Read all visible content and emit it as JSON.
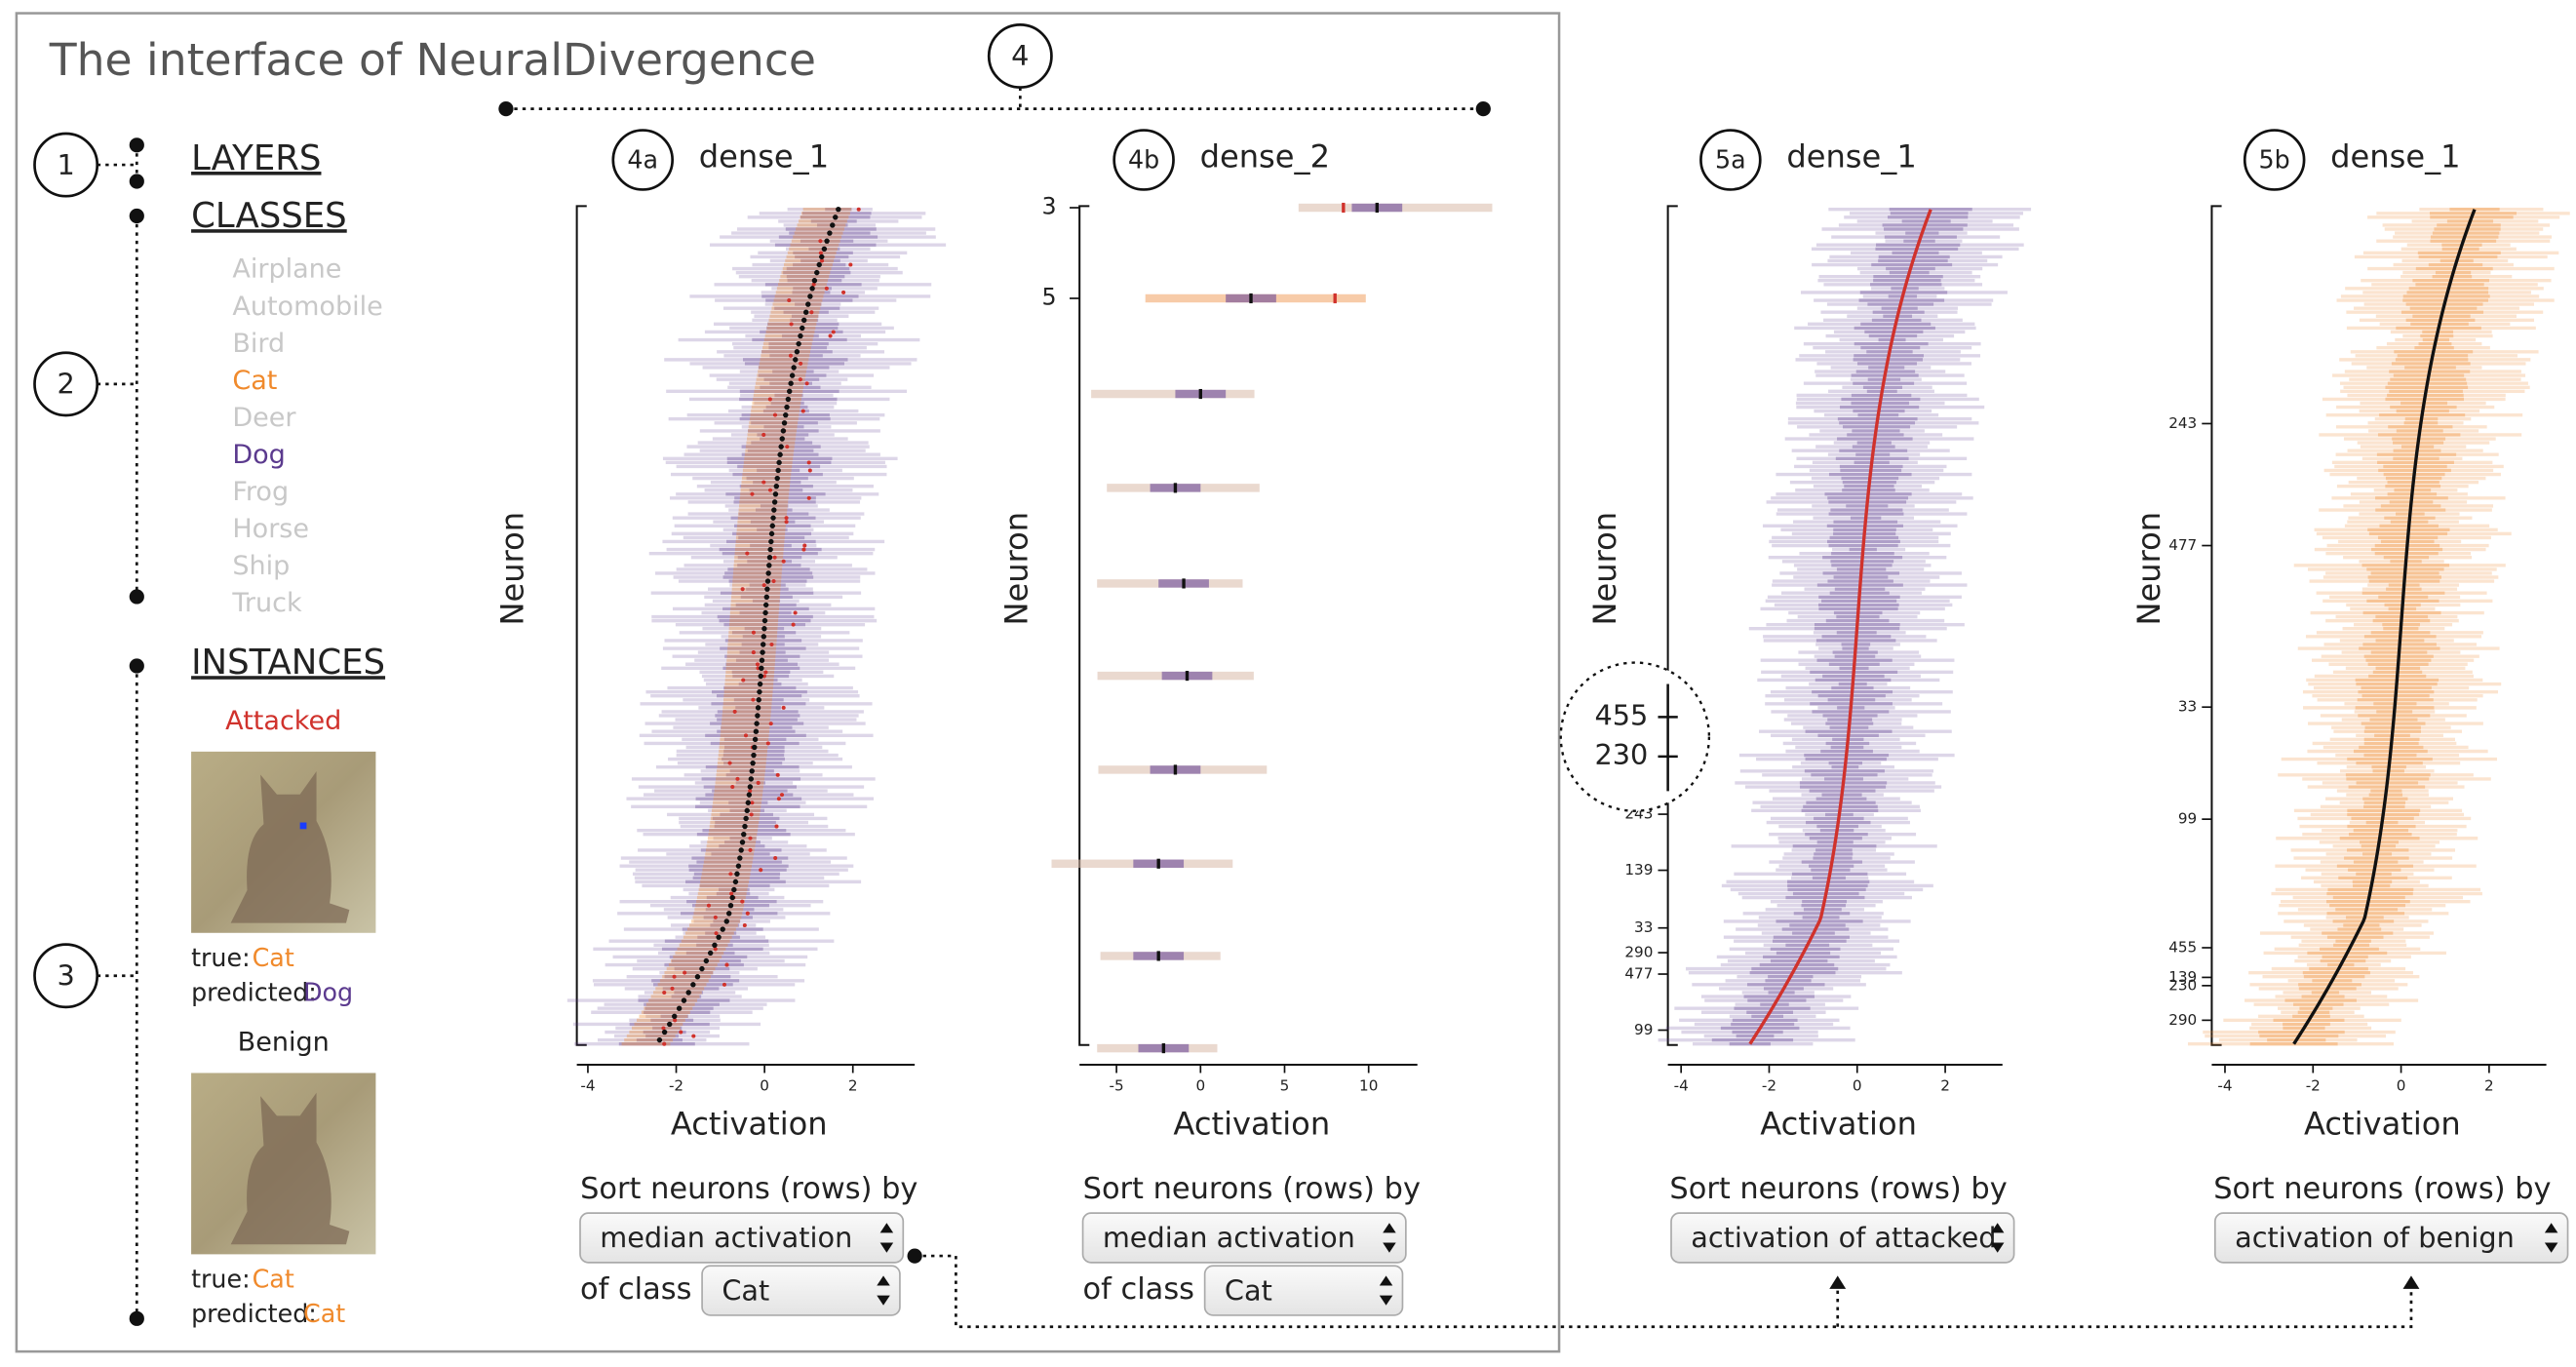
{
  "title": "The interface of NeuralDivergence",
  "callouts": [
    "1",
    "2",
    "3",
    "4"
  ],
  "sidebar": {
    "layers": "LAYERS",
    "classes_heading": "CLASSES",
    "classes": [
      "Airplane",
      "Automobile",
      "Bird",
      "Cat",
      "Deer",
      "Dog",
      "Frog",
      "Horse",
      "Ship",
      "Truck"
    ],
    "instances_heading": "INSTANCES",
    "instances": [
      {
        "caption": "Attacked",
        "true_label": "true:",
        "true_class": "Cat",
        "predicted_label": "predicted:",
        "predicted_class": "Dog"
      },
      {
        "caption": "Benign",
        "true_label": "true:",
        "true_class": "Cat",
        "predicted_label": "predicted:",
        "predicted_class": "Cat"
      }
    ]
  },
  "panels": [
    {
      "callout": "4a",
      "layer": "dense_1",
      "y_label": "Neuron",
      "x_label": "Activation",
      "xlim": [
        -4.25,
        3.4
      ],
      "xticks": [
        -4,
        -2,
        0,
        2
      ],
      "neuron_labels": [],
      "sort_label": "Sort neurons (rows) by",
      "sort_by": "median activation",
      "class_label": "of class",
      "class": "Cat"
    },
    {
      "callout": "4b",
      "layer": "dense_2",
      "y_label": "Neuron",
      "x_label": "Activation",
      "xlim": [
        -7.2,
        12.9
      ],
      "xticks": [
        -5,
        0,
        5,
        10
      ],
      "neuron_labels": [
        "3",
        "5"
      ],
      "sort_label": "Sort neurons (rows) by",
      "sort_by": "median activation",
      "class_label": "of class",
      "class": "Cat"
    },
    {
      "callout": "5a",
      "layer": "dense_1",
      "y_label": "Neuron",
      "x_label": "Activation",
      "xlim": [
        -4.3,
        3.3
      ],
      "xticks": [
        -4,
        -2,
        0,
        2
      ],
      "neuron_labels": [
        "243",
        "139",
        "33",
        "290",
        "477",
        "99"
      ],
      "zoom_labels": [
        "455",
        "230"
      ],
      "sort_label": "Sort neurons (rows) by",
      "sort_by": "activation of attacked"
    },
    {
      "callout": "5b",
      "layer": "dense_1",
      "y_label": "Neuron",
      "x_label": "Activation",
      "xlim": [
        -4.3,
        3.3
      ],
      "xticks": [
        -4,
        -2,
        0,
        2
      ],
      "neuron_labels": [
        "243",
        "477",
        "33",
        "99",
        "455",
        "139",
        "230",
        "290"
      ],
      "sort_label": "Sort neurons (rows) by",
      "sort_by": "activation of benign"
    }
  ]
}
